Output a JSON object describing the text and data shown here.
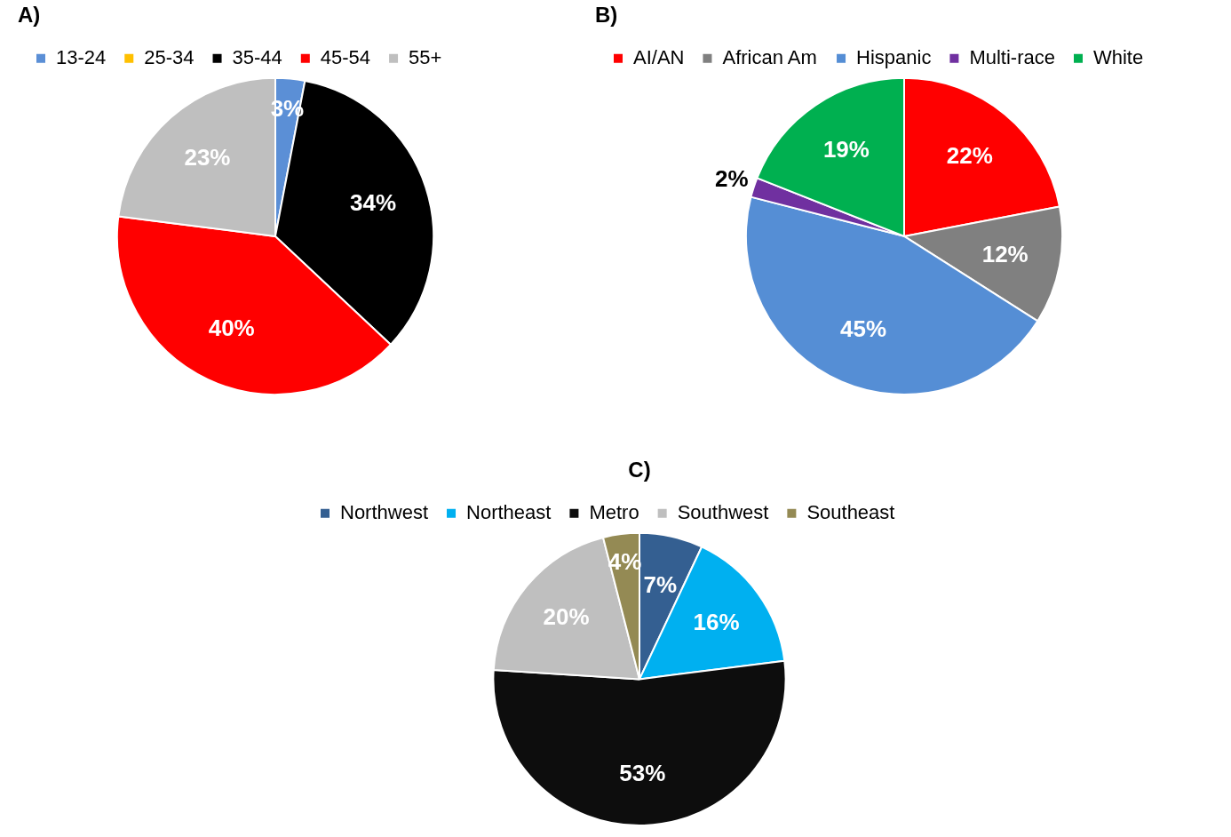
{
  "chart_data": [
    {
      "type": "pie",
      "title": "A)",
      "legend": "top left",
      "categories": [
        "13-24",
        "25-34",
        "35-44",
        "45-54",
        "55+"
      ],
      "values": [
        3,
        0,
        34,
        40,
        23
      ],
      "colors": [
        "#5b8fd6",
        "#ffc000",
        "#000000",
        "#ff0000",
        "#bfbfbf"
      ],
      "value_labels": [
        "3%",
        null,
        "34%",
        "40%",
        "23%"
      ]
    },
    {
      "type": "pie",
      "title": "B)",
      "legend": "top left",
      "categories": [
        "AI/AN",
        "African Am",
        "Hispanic",
        "Multi-race",
        "White"
      ],
      "values": [
        22,
        12,
        45,
        2,
        19
      ],
      "colors": [
        "#ff0000",
        "#808080",
        "#558ed5",
        "#7030a0",
        "#00b050"
      ],
      "value_labels": [
        "22%",
        "12%",
        "45%",
        "2%",
        "19%"
      ]
    },
    {
      "type": "pie",
      "title": "C)",
      "legend": "top left",
      "categories": [
        "Northwest",
        "Northeast",
        "Metro",
        "Southwest",
        "Southeast"
      ],
      "values": [
        7,
        16,
        53,
        20,
        4
      ],
      "colors": [
        "#345f91",
        "#00b0f0",
        "#0d0d0d",
        "#bfbfbf",
        "#948a54"
      ],
      "value_labels": [
        "7%",
        "16%",
        "53%",
        "20%",
        "4%"
      ]
    }
  ]
}
